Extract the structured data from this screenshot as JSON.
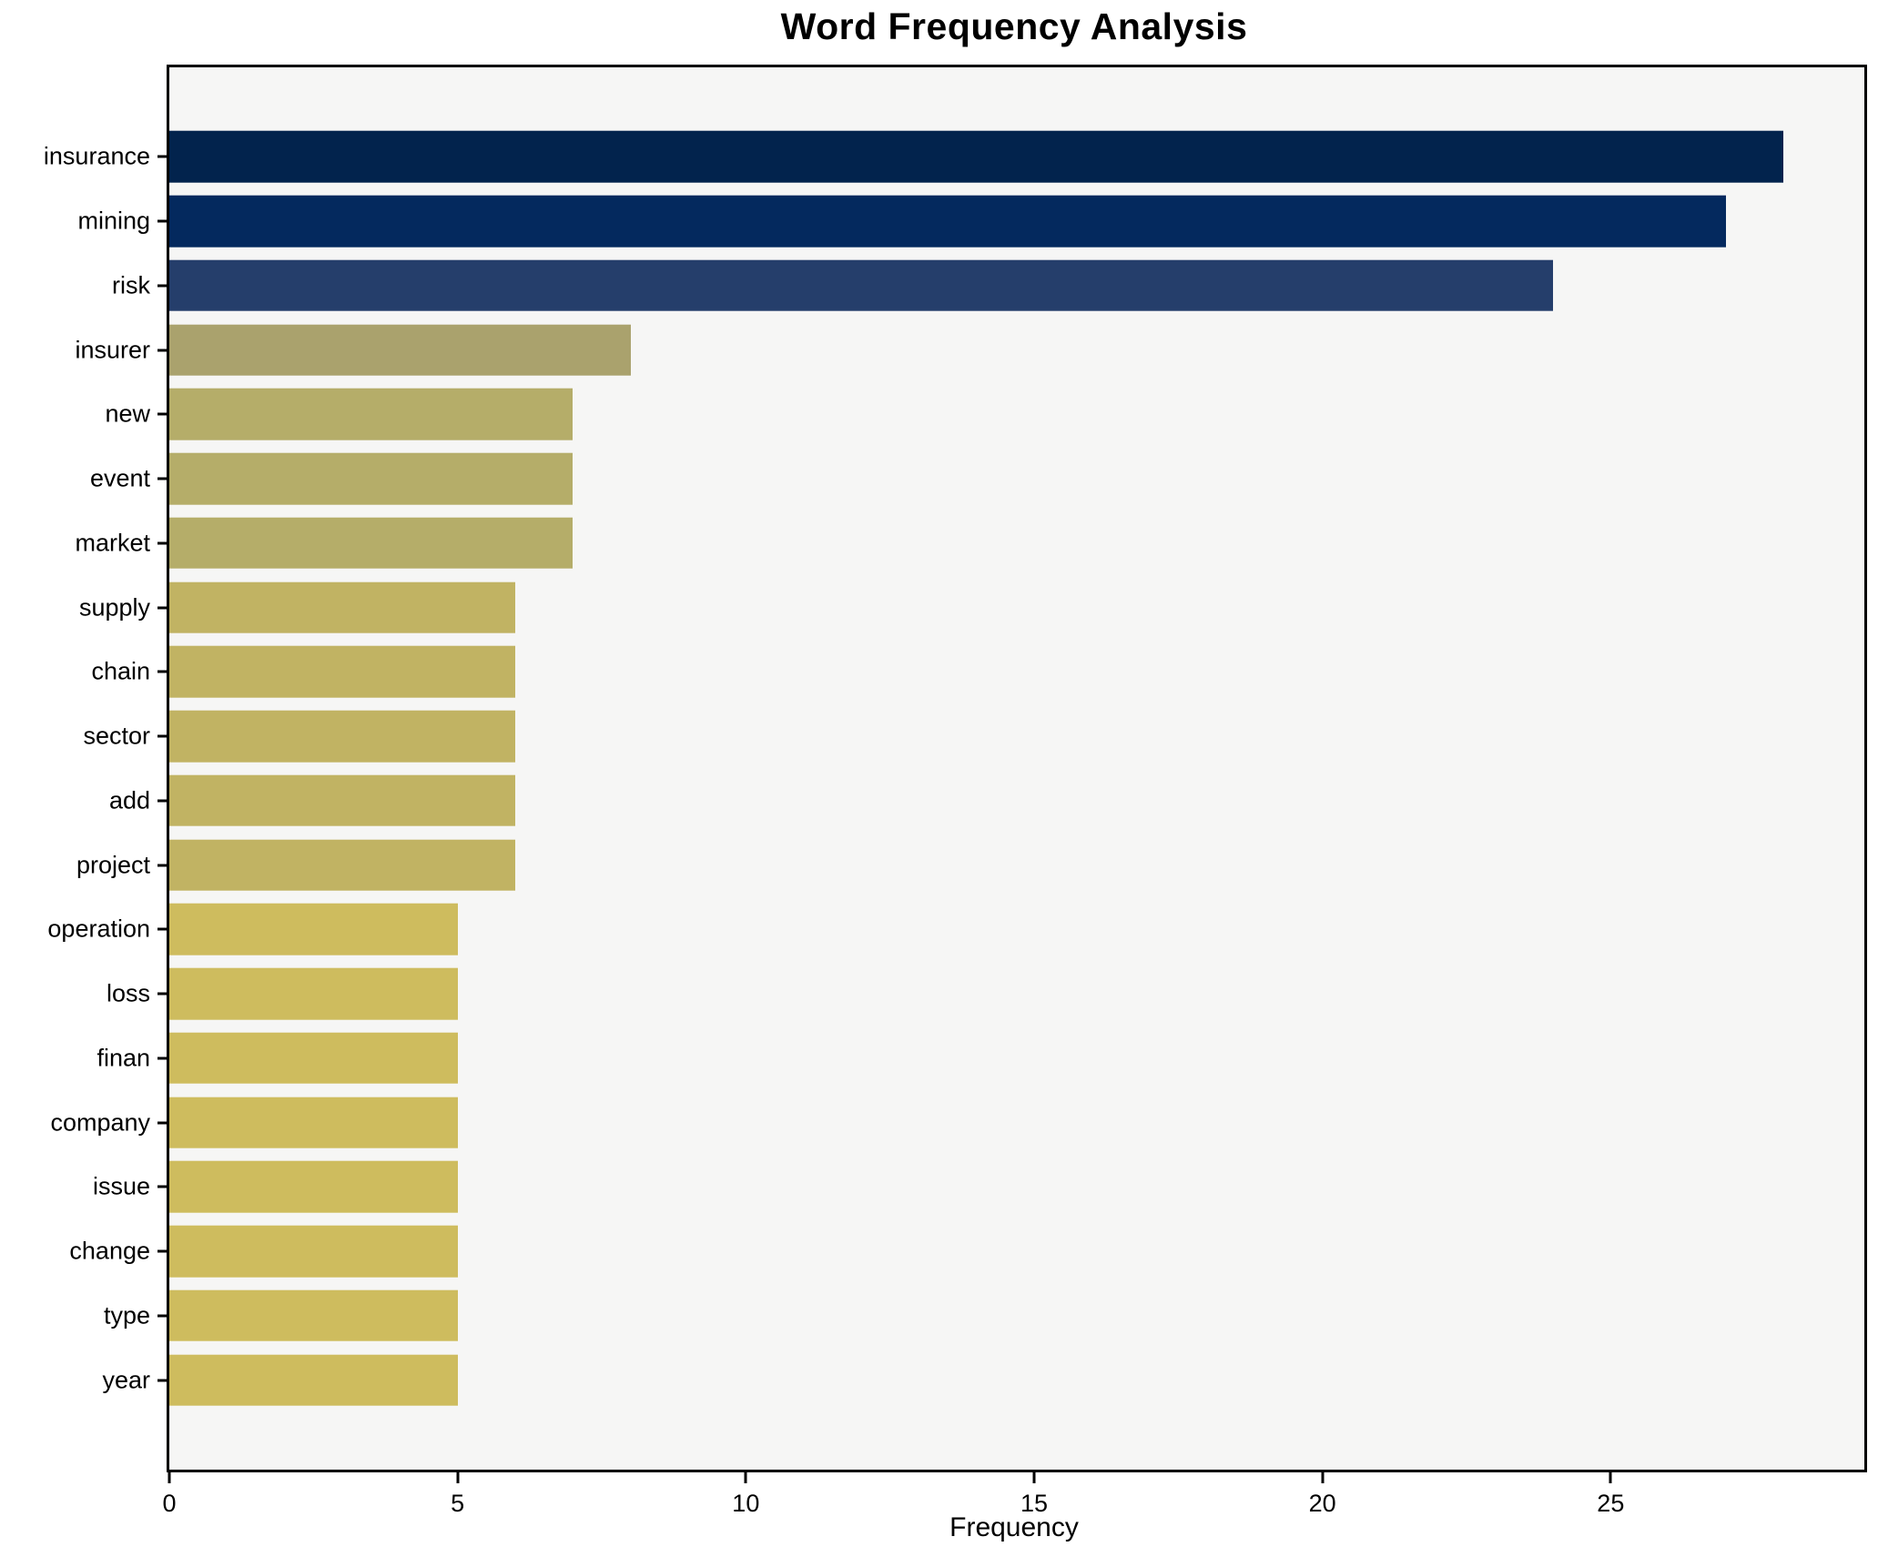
{
  "title": "Word Frequency Analysis",
  "chart_data": {
    "type": "bar",
    "orientation": "horizontal",
    "title": "Word Frequency Analysis",
    "xlabel": "Frequency",
    "ylabel": "",
    "categories": [
      "insurance",
      "mining",
      "risk",
      "insurer",
      "new",
      "event",
      "market",
      "supply",
      "chain",
      "sector",
      "add",
      "project",
      "operation",
      "loss",
      "finan",
      "company",
      "issue",
      "change",
      "type",
      "year"
    ],
    "values": [
      28,
      27,
      24,
      8,
      7,
      7,
      7,
      6,
      6,
      6,
      6,
      6,
      5,
      5,
      5,
      5,
      5,
      5,
      5,
      5
    ],
    "bar_colors": [
      "#02234d",
      "#04295e",
      "#253e6b",
      "#aaa26d",
      "#b5ad69",
      "#b5ad69",
      "#b5ad69",
      "#c1b363",
      "#c1b363",
      "#c1b363",
      "#c1b363",
      "#c1b363",
      "#cebc5e",
      "#cebc5e",
      "#cebc5e",
      "#cebc5e",
      "#cebc5e",
      "#cebc5e",
      "#cebc5e",
      "#cebc5e"
    ],
    "xlim": [
      0,
      29.4
    ],
    "xticks": [
      0,
      5,
      10,
      15,
      20,
      25
    ],
    "grid": false,
    "legend": "none",
    "plot_background": "#f6f6f5",
    "figure_background": "#ffffff",
    "spine_color": "#000000",
    "bar_unit_height": 0.8,
    "y_axis_span": 21.78,
    "y_axis_offset": 1.39
  }
}
